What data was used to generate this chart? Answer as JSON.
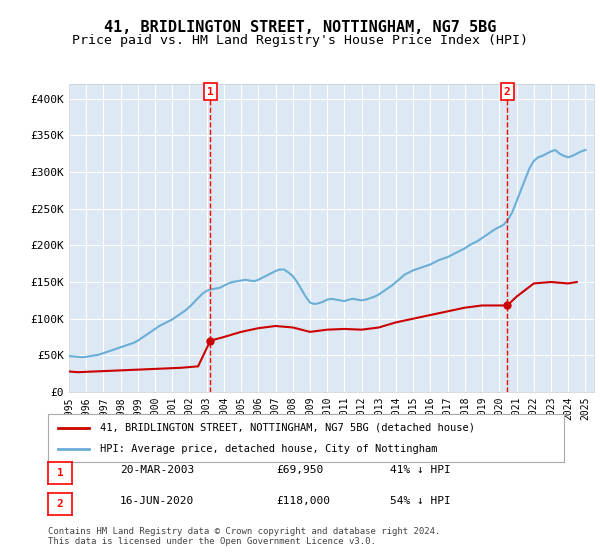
{
  "title": "41, BRIDLINGTON STREET, NOTTINGHAM, NG7 5BG",
  "subtitle": "Price paid vs. HM Land Registry's House Price Index (HPI)",
  "title_fontsize": 11,
  "subtitle_fontsize": 9.5,
  "bg_color": "#ffffff",
  "plot_bg_color": "#dce9f5",
  "grid_color": "#ffffff",
  "ylim": [
    0,
    420000
  ],
  "yticks": [
    0,
    50000,
    100000,
    150000,
    200000,
    250000,
    300000,
    350000,
    400000
  ],
  "ytick_labels": [
    "£0",
    "£50K",
    "£100K",
    "£150K",
    "£200K",
    "£250K",
    "£300K",
    "£350K",
    "£400K"
  ],
  "xlim_start": 1995.0,
  "xlim_end": 2025.5,
  "xticks": [
    1995,
    1996,
    1997,
    1998,
    1999,
    2000,
    2001,
    2002,
    2003,
    2004,
    2005,
    2006,
    2007,
    2008,
    2009,
    2010,
    2011,
    2012,
    2013,
    2014,
    2015,
    2016,
    2017,
    2018,
    2019,
    2020,
    2021,
    2022,
    2023,
    2024,
    2025
  ],
  "hpi_color": "#6baed6",
  "price_color": "#cc0000",
  "marker1_x": 2003.21,
  "marker1_y": 69950,
  "marker1_label": "1",
  "marker1_date": "20-MAR-2003",
  "marker1_price": "£69,950",
  "marker1_hpi": "41% ↓ HPI",
  "marker2_x": 2020.46,
  "marker2_y": 118000,
  "marker2_label": "2",
  "marker2_date": "16-JUN-2020",
  "marker2_price": "£118,000",
  "marker2_hpi": "54% ↓ HPI",
  "legend_line1": "41, BRIDLINGTON STREET, NOTTINGHAM, NG7 5BG (detached house)",
  "legend_line2": "HPI: Average price, detached house, City of Nottingham",
  "footer": "Contains HM Land Registry data © Crown copyright and database right 2024.\nThis data is licensed under the Open Government Licence v3.0.",
  "hpi_data_x": [
    1995.0,
    1995.25,
    1995.5,
    1995.75,
    1996.0,
    1996.25,
    1996.5,
    1996.75,
    1997.0,
    1997.25,
    1997.5,
    1997.75,
    1998.0,
    1998.25,
    1998.5,
    1998.75,
    1999.0,
    1999.25,
    1999.5,
    1999.75,
    2000.0,
    2000.25,
    2000.5,
    2000.75,
    2001.0,
    2001.25,
    2001.5,
    2001.75,
    2002.0,
    2002.25,
    2002.5,
    2002.75,
    2003.0,
    2003.25,
    2003.5,
    2003.75,
    2004.0,
    2004.25,
    2004.5,
    2004.75,
    2005.0,
    2005.25,
    2005.5,
    2005.75,
    2006.0,
    2006.25,
    2006.5,
    2006.75,
    2007.0,
    2007.25,
    2007.5,
    2007.75,
    2008.0,
    2008.25,
    2008.5,
    2008.75,
    2009.0,
    2009.25,
    2009.5,
    2009.75,
    2010.0,
    2010.25,
    2010.5,
    2010.75,
    2011.0,
    2011.25,
    2011.5,
    2011.75,
    2012.0,
    2012.25,
    2012.5,
    2012.75,
    2013.0,
    2013.25,
    2013.5,
    2013.75,
    2014.0,
    2014.25,
    2014.5,
    2014.75,
    2015.0,
    2015.25,
    2015.5,
    2015.75,
    2016.0,
    2016.25,
    2016.5,
    2016.75,
    2017.0,
    2017.25,
    2017.5,
    2017.75,
    2018.0,
    2018.25,
    2018.5,
    2018.75,
    2019.0,
    2019.25,
    2019.5,
    2019.75,
    2020.0,
    2020.25,
    2020.5,
    2020.75,
    2021.0,
    2021.25,
    2021.5,
    2021.75,
    2022.0,
    2022.25,
    2022.5,
    2022.75,
    2023.0,
    2023.25,
    2023.5,
    2023.75,
    2024.0,
    2024.25,
    2024.5,
    2024.75,
    2025.0
  ],
  "hpi_data_y": [
    49000,
    48500,
    48000,
    47500,
    48000,
    49000,
    50000,
    51000,
    53000,
    55000,
    57000,
    59000,
    61000,
    63000,
    65000,
    67000,
    70000,
    74000,
    78000,
    82000,
    86000,
    90000,
    93000,
    96000,
    99000,
    103000,
    107000,
    111000,
    116000,
    122000,
    128000,
    134000,
    138000,
    140000,
    141000,
    142000,
    145000,
    148000,
    150000,
    151000,
    152000,
    153000,
    152000,
    151000,
    153000,
    156000,
    159000,
    162000,
    165000,
    167000,
    167000,
    163000,
    158000,
    150000,
    140000,
    130000,
    122000,
    120000,
    121000,
    123000,
    126000,
    127000,
    126000,
    125000,
    124000,
    126000,
    127000,
    126000,
    125000,
    126000,
    128000,
    130000,
    133000,
    137000,
    141000,
    145000,
    150000,
    155000,
    160000,
    163000,
    166000,
    168000,
    170000,
    172000,
    174000,
    177000,
    180000,
    182000,
    184000,
    187000,
    190000,
    193000,
    196000,
    200000,
    203000,
    206000,
    210000,
    214000,
    218000,
    222000,
    225000,
    228000,
    235000,
    245000,
    260000,
    275000,
    290000,
    305000,
    315000,
    320000,
    322000,
    325000,
    328000,
    330000,
    325000,
    322000,
    320000,
    322000,
    325000,
    328000,
    330000
  ],
  "price_data_x": [
    1995.0,
    1995.5,
    1996.0,
    1996.5,
    1997.0,
    1997.5,
    1998.0,
    1998.5,
    1999.0,
    1999.5,
    2000.0,
    2000.5,
    2001.0,
    2001.5,
    2002.0,
    2002.5,
    2003.21,
    2004.0,
    2005.0,
    2006.0,
    2007.0,
    2008.0,
    2009.0,
    2010.0,
    2011.0,
    2012.0,
    2013.0,
    2014.0,
    2015.0,
    2016.0,
    2017.0,
    2018.0,
    2019.0,
    2020.46,
    2021.0,
    2022.0,
    2023.0,
    2024.0,
    2024.5
  ],
  "price_data_y": [
    28000,
    27000,
    27500,
    28000,
    28500,
    29000,
    29500,
    30000,
    30500,
    31000,
    31500,
    32000,
    32500,
    33000,
    34000,
    35000,
    69950,
    75000,
    82000,
    87000,
    90000,
    88000,
    82000,
    85000,
    86000,
    85000,
    88000,
    95000,
    100000,
    105000,
    110000,
    115000,
    118000,
    118000,
    130000,
    148000,
    150000,
    148000,
    150000
  ]
}
